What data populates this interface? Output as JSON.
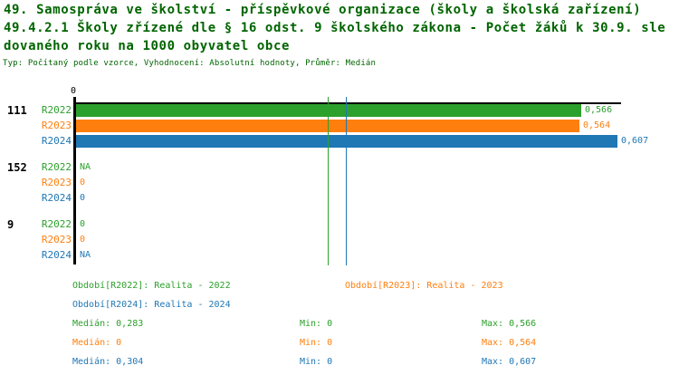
{
  "header": {
    "title_line1": "49. Samospráva ve školství - příspěvkové organizace (školy a školská zařízení)",
    "title_line2": "49.4.2.1 Školy zřízené dle § 16 odst. 9 školského zákona - Počet žáků k 30.9. sle",
    "title_line3": "dovaného roku na 1000 obyvatel obce",
    "subtitle": "Typ: Počítaný podle vzorce, Vyhodnocení: Absolutní hodnoty, Průměr: Medián"
  },
  "colors": {
    "title_text": "#006400",
    "axis": "#000000",
    "series": {
      "R2022": "#2ca02c",
      "R2023": "#ff7f0e",
      "R2024": "#1f77b4"
    }
  },
  "chart_data": {
    "type": "bar",
    "orientation": "horizontal",
    "x_axis": {
      "min": 0,
      "tick_labels": [
        "0"
      ]
    },
    "xlim": [
      0,
      0.607
    ],
    "series_order": [
      "R2022",
      "R2023",
      "R2024"
    ],
    "groups": [
      {
        "label": "111",
        "values": [
          {
            "series": "R2022",
            "value": 0.566,
            "display": "0,566"
          },
          {
            "series": "R2023",
            "value": 0.564,
            "display": "0,564"
          },
          {
            "series": "R2024",
            "value": 0.607,
            "display": "0,607"
          }
        ]
      },
      {
        "label": "152",
        "values": [
          {
            "series": "R2022",
            "value": null,
            "display": "NA"
          },
          {
            "series": "R2023",
            "value": 0,
            "display": "0"
          },
          {
            "series": "R2024",
            "value": 0,
            "display": "0"
          }
        ]
      },
      {
        "label": "9",
        "values": [
          {
            "series": "R2022",
            "value": 0,
            "display": "0"
          },
          {
            "series": "R2023",
            "value": 0,
            "display": "0"
          },
          {
            "series": "R2024",
            "value": null,
            "display": "NA"
          }
        ]
      }
    ],
    "median_lines": [
      {
        "series": "R2022",
        "value": 0.283
      },
      {
        "series": "R2024",
        "value": 0.304
      }
    ],
    "stats": [
      {
        "series": "R2022",
        "median": 0.283,
        "min": 0,
        "max": 0.566
      },
      {
        "series": "R2023",
        "median": 0,
        "min": 0,
        "max": 0.564
      },
      {
        "series": "R2024",
        "median": 0.304,
        "min": 0,
        "max": 0.607
      }
    ]
  },
  "legend": {
    "items": [
      {
        "series": "R2022",
        "text": "Období[R2022]: Realita - 2022"
      },
      {
        "series": "R2023",
        "text": "Období[R2023]: Realita - 2023"
      },
      {
        "series": "R2024",
        "text": "Období[R2024]: Realita - 2024"
      }
    ]
  },
  "stats_display": {
    "rows": [
      {
        "series": "R2022",
        "median": "Medián: 0,283",
        "min": "Min: 0",
        "max": "Max: 0,566"
      },
      {
        "series": "R2023",
        "median": "Medián: 0",
        "min": "Min: 0",
        "max": "Max: 0,564"
      },
      {
        "series": "R2024",
        "median": "Medián: 0,304",
        "min": "Min: 0",
        "max": "Max: 0,607"
      }
    ]
  }
}
